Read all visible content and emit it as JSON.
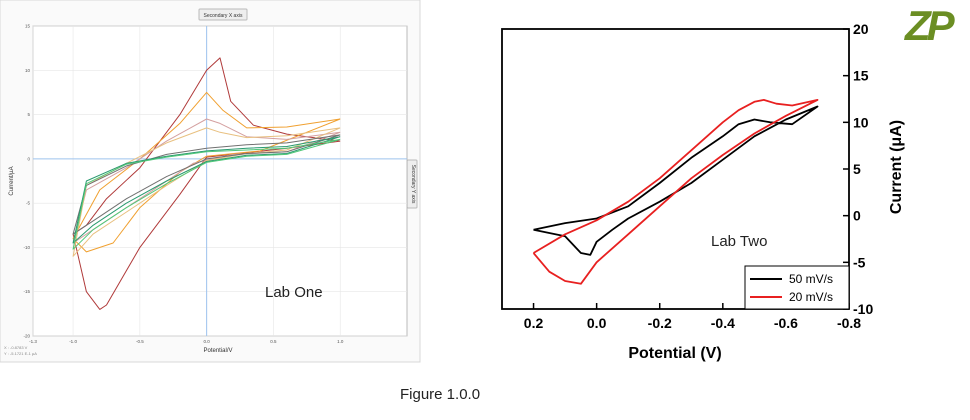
{
  "figure": {
    "caption": "Figure 1.0.0",
    "logo_text": "ZP",
    "logo_color": "#6b8e23"
  },
  "chart_data": [
    {
      "type": "line",
      "title": "",
      "top_button": "Secondary X axis",
      "side_button": "Secondary Y axis",
      "annotation": "Lab One",
      "xlabel": "Potential/V",
      "ylabel": "Current/µA",
      "xlim": [
        -1.3,
        1.5
      ],
      "ylim": [
        -20,
        15
      ],
      "xticks": [
        -1.3,
        -1.0,
        -0.5,
        0.0,
        0.5,
        1.0
      ],
      "xtick_labels": [
        "-1.3",
        "-1.0",
        "-0.5",
        "0.0",
        "0.5",
        "1.0"
      ],
      "yticks": [
        -20,
        -15,
        -10,
        -5,
        0,
        5,
        10,
        15
      ],
      "ytick_labels": [
        "-20",
        "-15",
        "-10",
        "-5",
        "0",
        "5",
        "10",
        "15"
      ],
      "zero_lines": true,
      "grid": true,
      "readout": [
        "X : -0.8783 V",
        "Y : -5.1721 E-1 µA"
      ],
      "series": [
        {
          "color": "#b03a3a",
          "x": [
            1.0,
            0.6,
            0.35,
            0.18,
            0.1,
            0.0,
            -0.2,
            -0.5,
            -0.75,
            -0.9,
            -1.0,
            -0.9,
            -0.8,
            -0.75,
            -0.5,
            -0.2,
            0.0,
            0.3,
            0.6,
            1.0
          ],
          "y": [
            2.0,
            2.8,
            3.8,
            6.5,
            11.4,
            10.0,
            5.0,
            -1.0,
            -4.5,
            -7.5,
            -8.5,
            -15.0,
            -17.0,
            -16.5,
            -10.0,
            -4.0,
            0.2,
            0.7,
            1.2,
            2.0
          ]
        },
        {
          "color": "#f0a030",
          "x": [
            1.0,
            0.6,
            0.3,
            0.12,
            0.0,
            -0.2,
            -0.5,
            -0.8,
            -1.0,
            -0.9,
            -0.7,
            -0.5,
            -0.2,
            0.0,
            0.4,
            1.0
          ],
          "y": [
            4.5,
            3.6,
            3.5,
            5.5,
            7.5,
            4.0,
            0.0,
            -3.5,
            -9.0,
            -10.5,
            -9.5,
            -5.5,
            -1.5,
            0.3,
            0.9,
            4.5
          ]
        },
        {
          "color": "#d4a0a0",
          "x": [
            1.0,
            0.6,
            0.3,
            0.1,
            0.0,
            -0.3,
            -0.6,
            -0.9,
            -1.0,
            -0.85,
            -0.65,
            -0.4,
            -0.1,
            0.2,
            0.6,
            1.0
          ],
          "y": [
            3.0,
            2.2,
            2.5,
            4.0,
            4.5,
            2.0,
            -1.0,
            -3.5,
            -9.5,
            -8.0,
            -6.0,
            -3.5,
            -0.5,
            0.5,
            0.8,
            3.0
          ]
        },
        {
          "color": "#e8c080",
          "x": [
            1.0,
            0.6,
            0.3,
            0.1,
            0.0,
            -0.3,
            -0.6,
            -0.9,
            -1.0,
            -0.85,
            -0.6,
            -0.3,
            0.0,
            0.3,
            0.6,
            1.0
          ],
          "y": [
            3.5,
            2.6,
            2.4,
            3.0,
            3.5,
            1.8,
            -0.5,
            -3.0,
            -11.0,
            -8.5,
            -6.0,
            -3.0,
            -0.2,
            0.6,
            1.0,
            3.5
          ]
        },
        {
          "color": "#707070",
          "x": [
            1.0,
            0.6,
            0.3,
            0.0,
            -0.3,
            -0.6,
            -0.9,
            -1.0,
            -0.85,
            -0.6,
            -0.3,
            0.0,
            0.3,
            0.6,
            1.0
          ],
          "y": [
            2.7,
            1.8,
            1.6,
            1.2,
            0.5,
            -0.8,
            -3.0,
            -8.5,
            -7.0,
            -4.5,
            -2.0,
            0.0,
            0.6,
            0.8,
            2.7
          ]
        },
        {
          "color": "#2a9a70",
          "x": [
            1.0,
            0.6,
            0.3,
            0.0,
            -0.3,
            -0.6,
            -0.9,
            -1.0,
            -0.85,
            -0.6,
            -0.3,
            0.0,
            0.3,
            0.6,
            1.0
          ],
          "y": [
            2.5,
            1.4,
            1.2,
            0.9,
            0.3,
            -0.5,
            -2.5,
            -9.5,
            -7.5,
            -5.0,
            -2.5,
            -0.3,
            0.4,
            0.6,
            2.5
          ]
        },
        {
          "color": "#50c878",
          "x": [
            1.0,
            0.6,
            0.3,
            0.0,
            -0.3,
            -0.6,
            -0.9,
            -1.0,
            -0.85,
            -0.6,
            -0.3,
            0.0,
            0.3,
            0.6,
            1.0
          ],
          "y": [
            2.2,
            1.2,
            1.0,
            0.8,
            0.2,
            -0.6,
            -2.8,
            -10.2,
            -8.0,
            -5.5,
            -2.8,
            -0.4,
            0.3,
            0.5,
            2.2
          ]
        }
      ]
    },
    {
      "type": "line",
      "title": "",
      "annotation": "Lab Two",
      "xlabel": "Potential (V)",
      "ylabel": "Current (μA)",
      "xlim": [
        0.3,
        -0.8
      ],
      "ylim": [
        -10,
        20
      ],
      "xticks": [
        0.2,
        0.0,
        -0.2,
        -0.4,
        -0.6,
        -0.8
      ],
      "xtick_labels": [
        "0.2",
        "0.0",
        "-0.2",
        "-0.4",
        "-0.6",
        "-0.8"
      ],
      "yticks": [
        -10,
        -5,
        0,
        5,
        10,
        15,
        20
      ],
      "ytick_labels": [
        "-10",
        "-5",
        "0",
        "5",
        "10",
        "15",
        "20"
      ],
      "grid": false,
      "legend_position": "bottom-right",
      "series": [
        {
          "name": "50 mV/s",
          "color": "#000000",
          "x": [
            0.2,
            0.1,
            0.0,
            -0.1,
            -0.2,
            -0.3,
            -0.4,
            -0.45,
            -0.5,
            -0.55,
            -0.62,
            -0.7,
            -0.6,
            -0.5,
            -0.4,
            -0.3,
            -0.2,
            -0.1,
            -0.05,
            0.0,
            0.02,
            0.05,
            0.1,
            0.2
          ],
          "y": [
            -1.5,
            -0.8,
            -0.3,
            1.0,
            3.5,
            6.2,
            8.5,
            9.8,
            10.3,
            10.0,
            9.8,
            11.7,
            10.3,
            8.5,
            6.0,
            3.5,
            1.5,
            -0.3,
            -1.5,
            -2.8,
            -4.2,
            -4.0,
            -2.2,
            -1.5
          ]
        },
        {
          "name": "20 mV/s",
          "color": "#e82020",
          "x": [
            0.2,
            0.1,
            0.0,
            -0.1,
            -0.2,
            -0.3,
            -0.4,
            -0.45,
            -0.5,
            -0.53,
            -0.57,
            -0.62,
            -0.7,
            -0.6,
            -0.5,
            -0.4,
            -0.3,
            -0.2,
            -0.1,
            0.0,
            0.05,
            0.1,
            0.15,
            0.2
          ],
          "y": [
            -4.0,
            -2.0,
            -0.5,
            1.5,
            4.0,
            7.0,
            10.0,
            11.3,
            12.2,
            12.4,
            12.0,
            11.8,
            12.4,
            10.7,
            8.8,
            6.5,
            4.0,
            1.0,
            -2.0,
            -5.0,
            -7.3,
            -7.0,
            -6.0,
            -4.0
          ]
        }
      ]
    }
  ]
}
